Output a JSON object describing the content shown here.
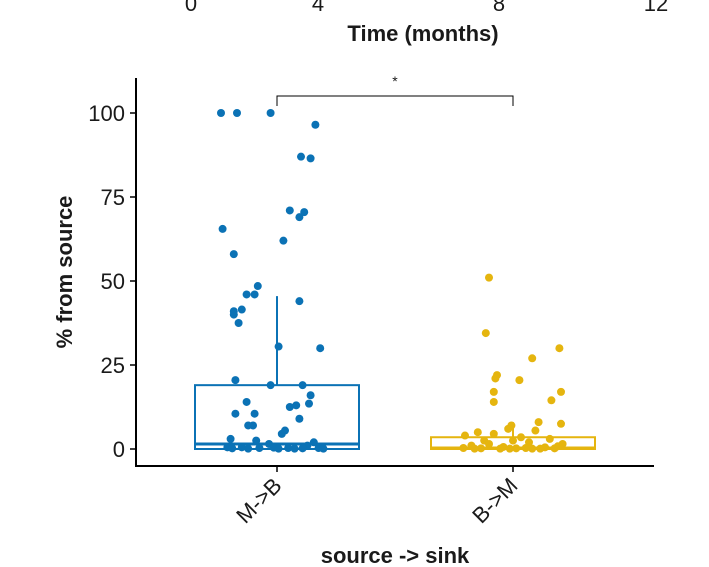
{
  "top_axis": {
    "ticks": [
      "0",
      "4",
      "8",
      "12"
    ],
    "title": "Time (months)"
  },
  "chart_data": {
    "type": "box",
    "title": "",
    "xlabel": "source -> sink",
    "ylabel": "% from source",
    "ylim": [
      -5,
      110
    ],
    "yticks": [
      0,
      25,
      50,
      75,
      100
    ],
    "categories": [
      "M->B",
      "B->M"
    ],
    "grid": false,
    "legend": "none",
    "significance": {
      "between": [
        "M->B",
        "B->M"
      ],
      "label": "*"
    },
    "series": [
      {
        "category": "M->B",
        "color": "#0b72b5",
        "box": {
          "min": 0,
          "q1": 0,
          "median": 1.5,
          "q3": 19,
          "max": 45.5
        },
        "points": [
          [
            -0.35,
            100
          ],
          [
            -0.25,
            100
          ],
          [
            -0.04,
            100
          ],
          [
            0.24,
            96.5
          ],
          [
            0.15,
            87
          ],
          [
            0.21,
            86.5
          ],
          [
            0.08,
            71
          ],
          [
            0.17,
            70.5
          ],
          [
            0.14,
            69
          ],
          [
            -0.34,
            65.5
          ],
          [
            0.04,
            62
          ],
          [
            -0.27,
            58
          ],
          [
            -0.12,
            48.5
          ],
          [
            -0.19,
            46
          ],
          [
            -0.14,
            46
          ],
          [
            0.14,
            44
          ],
          [
            -0.22,
            41.5
          ],
          [
            -0.27,
            41
          ],
          [
            -0.27,
            40
          ],
          [
            -0.24,
            37.5
          ],
          [
            0.01,
            30.5
          ],
          [
            0.27,
            30
          ],
          [
            -0.26,
            20.5
          ],
          [
            0.16,
            19
          ],
          [
            -0.04,
            19
          ],
          [
            0.21,
            16
          ],
          [
            -0.19,
            14
          ],
          [
            0.2,
            13.5
          ],
          [
            0.12,
            13
          ],
          [
            0.08,
            12.5
          ],
          [
            -0.26,
            10.5
          ],
          [
            -0.14,
            10.5
          ],
          [
            0.14,
            9
          ],
          [
            -0.18,
            7
          ],
          [
            -0.15,
            7
          ],
          [
            0.05,
            5.5
          ],
          [
            0.03,
            4.5
          ],
          [
            -0.29,
            3
          ],
          [
            -0.13,
            2.5
          ],
          [
            0.23,
            2
          ],
          [
            -0.05,
            1.5
          ],
          [
            0.19,
            1
          ],
          [
            -0.31,
            0.5
          ],
          [
            -0.22,
            0.5
          ],
          [
            -0.11,
            0.3
          ],
          [
            -0.02,
            0.4
          ],
          [
            0.07,
            0.3
          ],
          [
            0.16,
            0.2
          ],
          [
            0.26,
            0.3
          ],
          [
            -0.28,
            0.2
          ],
          [
            -0.18,
            0.1
          ],
          [
            0.01,
            0.1
          ],
          [
            0.11,
            0.1
          ],
          [
            0.29,
            0.1
          ]
        ]
      },
      {
        "category": "B->M",
        "color": "#e5b50f",
        "box": {
          "min": 0,
          "q1": 0,
          "median": 0.3,
          "q3": 3.5,
          "max": 8
        },
        "points": [
          [
            -0.15,
            51
          ],
          [
            -0.17,
            34.5
          ],
          [
            -0.1,
            22
          ],
          [
            -0.11,
            21
          ],
          [
            0.29,
            30
          ],
          [
            0.12,
            27
          ],
          [
            0.04,
            20.5
          ],
          [
            0.3,
            17
          ],
          [
            -0.12,
            17
          ],
          [
            0.24,
            14.5
          ],
          [
            -0.12,
            14
          ],
          [
            0.16,
            8
          ],
          [
            0.3,
            7.5
          ],
          [
            -0.01,
            7
          ],
          [
            -0.03,
            6
          ],
          [
            0.14,
            5.5
          ],
          [
            -0.22,
            5
          ],
          [
            -0.12,
            4.5
          ],
          [
            -0.3,
            4
          ],
          [
            0.05,
            3.5
          ],
          [
            0.23,
            3
          ],
          [
            -0.18,
            2.5
          ],
          [
            0.1,
            2
          ],
          [
            0.31,
            1.5
          ],
          [
            -0.26,
            1
          ],
          [
            -0.06,
            0.6
          ],
          [
            0.2,
            0.5
          ],
          [
            -0.31,
            0.3
          ],
          [
            -0.2,
            0.2
          ],
          [
            -0.08,
            0.1
          ],
          [
            0.02,
            0.2
          ],
          [
            0.12,
            0.1
          ],
          [
            0.26,
            0.2
          ],
          [
            -0.24,
            0.1
          ],
          [
            0.08,
            0.3
          ],
          [
            0.17,
            0.1
          ],
          [
            -0.15,
            1.5
          ],
          [
            0.0,
            2.5
          ],
          [
            0.28,
            0.8
          ],
          [
            -0.02,
            0.1
          ]
        ]
      }
    ]
  }
}
